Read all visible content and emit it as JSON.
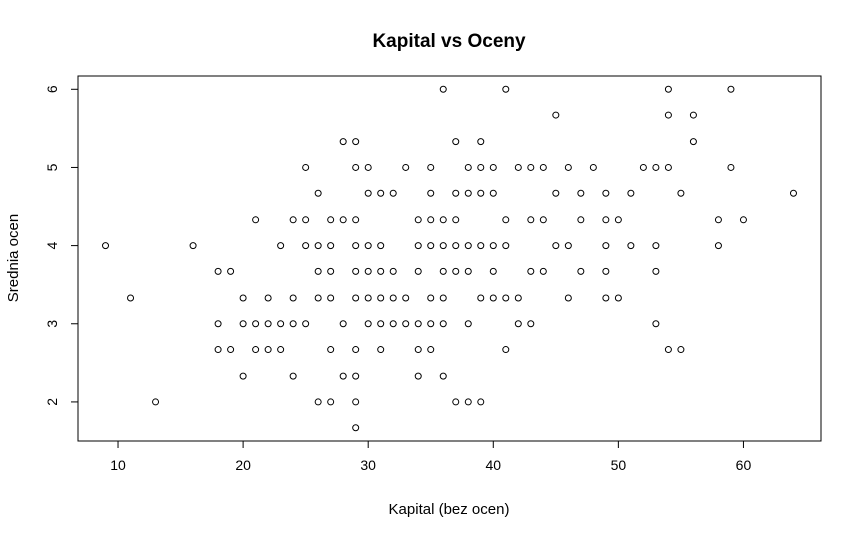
{
  "chart_data": {
    "type": "scatter",
    "title": "Kapital vs Oceny",
    "xlabel": "Kapital (bez ocen)",
    "ylabel": "Srednia ocen",
    "xlim": [
      6.8,
      66.2
    ],
    "ylim": [
      1.5,
      6.17
    ],
    "x_ticks": [
      10,
      20,
      30,
      40,
      50,
      60
    ],
    "y_ticks": [
      2,
      3,
      4,
      5,
      6
    ],
    "grid": false,
    "marker": "open-circle",
    "points": [
      [
        9,
        4
      ],
      [
        11,
        3.33
      ],
      [
        13,
        2
      ],
      [
        16,
        4
      ],
      [
        18,
        3.67
      ],
      [
        18,
        3
      ],
      [
        18,
        2.67
      ],
      [
        19,
        3.67
      ],
      [
        19,
        2.67
      ],
      [
        20,
        3.33
      ],
      [
        20,
        3
      ],
      [
        20,
        2.33
      ],
      [
        21,
        4.33
      ],
      [
        21,
        3
      ],
      [
        21,
        2.67
      ],
      [
        22,
        3.33
      ],
      [
        22,
        3
      ],
      [
        22,
        2.67
      ],
      [
        23,
        4
      ],
      [
        23,
        3
      ],
      [
        23,
        2.67
      ],
      [
        24,
        4.33
      ],
      [
        24,
        3.33
      ],
      [
        24,
        3
      ],
      [
        24,
        2.33
      ],
      [
        25,
        5
      ],
      [
        25,
        4.33
      ],
      [
        25,
        4
      ],
      [
        25,
        3
      ],
      [
        26,
        4.67
      ],
      [
        26,
        4
      ],
      [
        26,
        3.67
      ],
      [
        26,
        3.33
      ],
      [
        26,
        2
      ],
      [
        27,
        4.33
      ],
      [
        27,
        4
      ],
      [
        27,
        3.67
      ],
      [
        27,
        3.33
      ],
      [
        27,
        2.67
      ],
      [
        27,
        2
      ],
      [
        28,
        5.33
      ],
      [
        28,
        4.33
      ],
      [
        28,
        3
      ],
      [
        28,
        2.33
      ],
      [
        29,
        5.33
      ],
      [
        29,
        5
      ],
      [
        29,
        4.33
      ],
      [
        29,
        4
      ],
      [
        29,
        3.67
      ],
      [
        29,
        3.33
      ],
      [
        29,
        2.67
      ],
      [
        29,
        2.33
      ],
      [
        29,
        2
      ],
      [
        29,
        1.67
      ],
      [
        30,
        5
      ],
      [
        30,
        4.67
      ],
      [
        30,
        4
      ],
      [
        30,
        3.67
      ],
      [
        30,
        3.33
      ],
      [
        30,
        3
      ],
      [
        31,
        4.67
      ],
      [
        31,
        4
      ],
      [
        31,
        3.67
      ],
      [
        31,
        3.33
      ],
      [
        31,
        3
      ],
      [
        31,
        2.67
      ],
      [
        32,
        4.67
      ],
      [
        32,
        3.67
      ],
      [
        32,
        3.33
      ],
      [
        32,
        3
      ],
      [
        33,
        5
      ],
      [
        33,
        3.33
      ],
      [
        33,
        3
      ],
      [
        34,
        4.33
      ],
      [
        34,
        4
      ],
      [
        34,
        3.67
      ],
      [
        34,
        3
      ],
      [
        34,
        2.67
      ],
      [
        34,
        2.33
      ],
      [
        35,
        5
      ],
      [
        35,
        4.67
      ],
      [
        35,
        4.33
      ],
      [
        35,
        4
      ],
      [
        35,
        3.33
      ],
      [
        35,
        3
      ],
      [
        35,
        2.67
      ],
      [
        36,
        6
      ],
      [
        36,
        4.33
      ],
      [
        36,
        4
      ],
      [
        36,
        3.67
      ],
      [
        36,
        3.33
      ],
      [
        36,
        3
      ],
      [
        36,
        2.33
      ],
      [
        37,
        5.33
      ],
      [
        37,
        4.67
      ],
      [
        37,
        4.33
      ],
      [
        37,
        4
      ],
      [
        37,
        3.67
      ],
      [
        37,
        2
      ],
      [
        38,
        5
      ],
      [
        38,
        4.67
      ],
      [
        38,
        4
      ],
      [
        38,
        3.67
      ],
      [
        38,
        3
      ],
      [
        38,
        2
      ],
      [
        39,
        5.33
      ],
      [
        39,
        5
      ],
      [
        39,
        4.67
      ],
      [
        39,
        4
      ],
      [
        39,
        3.33
      ],
      [
        39,
        2
      ],
      [
        40,
        5
      ],
      [
        40,
        4.67
      ],
      [
        40,
        4
      ],
      [
        40,
        3.67
      ],
      [
        40,
        3.33
      ],
      [
        41,
        6
      ],
      [
        41,
        4.33
      ],
      [
        41,
        4
      ],
      [
        41,
        3.33
      ],
      [
        41,
        2.67
      ],
      [
        42,
        5
      ],
      [
        42,
        3.33
      ],
      [
        42,
        3
      ],
      [
        43,
        5
      ],
      [
        43,
        4.33
      ],
      [
        43,
        3.67
      ],
      [
        43,
        3
      ],
      [
        44,
        5
      ],
      [
        44,
        4.33
      ],
      [
        44,
        3.67
      ],
      [
        45,
        5.67
      ],
      [
        45,
        4.67
      ],
      [
        45,
        4
      ],
      [
        46,
        5
      ],
      [
        46,
        4
      ],
      [
        46,
        3.33
      ],
      [
        47,
        4.67
      ],
      [
        47,
        4.33
      ],
      [
        47,
        3.67
      ],
      [
        48,
        5
      ],
      [
        49,
        4.67
      ],
      [
        49,
        4.33
      ],
      [
        49,
        4
      ],
      [
        49,
        3.67
      ],
      [
        49,
        3.33
      ],
      [
        50,
        4.33
      ],
      [
        50,
        3.33
      ],
      [
        51,
        4.67
      ],
      [
        51,
        4
      ],
      [
        52,
        5
      ],
      [
        53,
        5
      ],
      [
        53,
        4
      ],
      [
        53,
        3.67
      ],
      [
        53,
        3
      ],
      [
        54,
        6
      ],
      [
        54,
        5.67
      ],
      [
        54,
        5
      ],
      [
        54,
        2.67
      ],
      [
        55,
        4.67
      ],
      [
        55,
        2.67
      ],
      [
        56,
        5.67
      ],
      [
        56,
        5.33
      ],
      [
        58,
        4.33
      ],
      [
        58,
        4
      ],
      [
        59,
        6
      ],
      [
        59,
        5
      ],
      [
        60,
        4.33
      ],
      [
        64,
        4.67
      ]
    ]
  }
}
